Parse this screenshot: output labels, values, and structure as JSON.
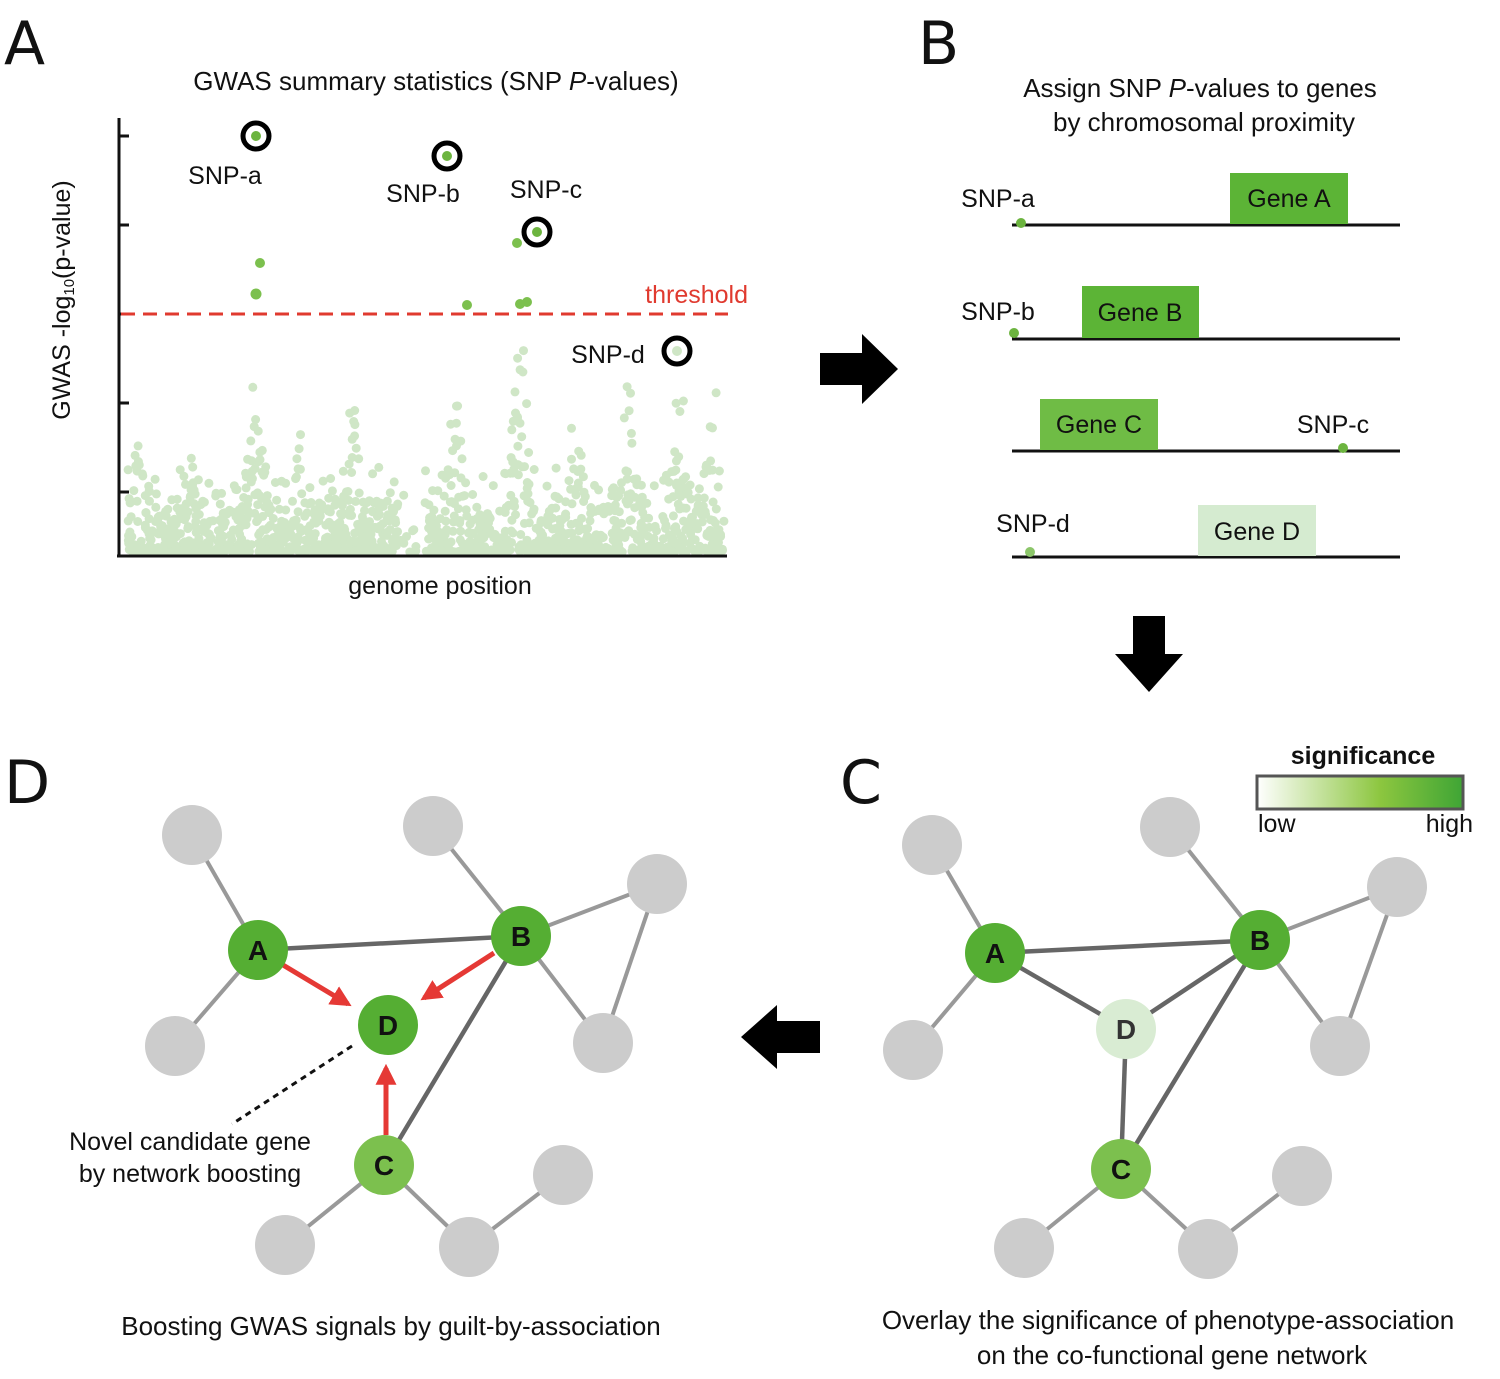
{
  "panels": {
    "a": {
      "letter": "A",
      "title_pre": "GWAS summary statistics (SNP ",
      "title_italic": "P",
      "title_post": "-values)",
      "ylabel_pre": "GWAS -log",
      "ylabel_sub": "10",
      "ylabel_post": "(p-value)",
      "xlabel": "genome position",
      "threshold_label": "threshold",
      "snps": [
        "SNP-a",
        "SNP-b",
        "SNP-c",
        "SNP-d"
      ]
    },
    "b": {
      "letter": "B",
      "title_l1_pre": "Assign SNP ",
      "title_l1_italic": "P",
      "title_l1_post": "-values to genes",
      "title_l2": "by chromosomal proximity",
      "rows": [
        {
          "snp": "SNP-a",
          "gene": "Gene A",
          "color": "#5cb436"
        },
        {
          "snp": "SNP-b",
          "gene": "Gene B",
          "color": "#5cb436"
        },
        {
          "snp": "SNP-c",
          "gene": "Gene C",
          "color": "#6fbc45"
        },
        {
          "snp": "SNP-d",
          "gene": "Gene D",
          "color": "#d5ebd0"
        }
      ]
    },
    "c": {
      "letter": "C",
      "legend_title": "significance",
      "legend_low": "low",
      "legend_high": "high",
      "caption_l1": "Overlay the significance of phenotype-association",
      "caption_l2": "on the co-functional gene network",
      "nodes": {
        "A": "A",
        "B": "B",
        "C": "C",
        "D": "D"
      }
    },
    "d": {
      "letter": "D",
      "annotation_l1": "Novel candidate gene",
      "annotation_l2": "by network boosting",
      "caption": "Boosting GWAS signals by guilt-by-association",
      "nodes": {
        "A": "A",
        "B": "B",
        "C": "C",
        "D": "D"
      }
    }
  },
  "colors": {
    "high": "#55ae33",
    "mid": "#7cc04e",
    "low": "#d9ecd3",
    "faint_point": "#cfe6c6",
    "gray_node": "#cccccc",
    "threshold": "#e03a2f",
    "boost_arrow": "#e53935"
  }
}
